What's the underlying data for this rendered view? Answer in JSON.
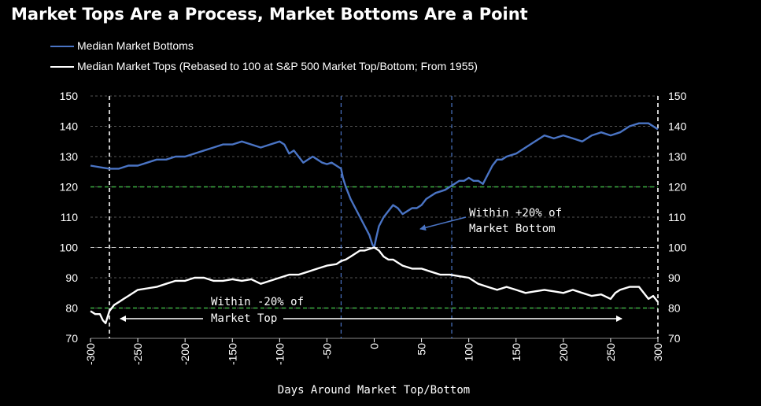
{
  "title": "Market Tops Are a Process, Market Bottoms Are a Point",
  "colors": {
    "bottoms": "#4a74c4",
    "tops": "#ffffff",
    "green_ref": "#3cb043",
    "blue_ref": "#4a74c4",
    "background": "#000000"
  },
  "chart_data": {
    "type": "line",
    "title": "Market Tops Are a Process, Market Bottoms Are a Point",
    "xlabel": "Days Around Market Top/Bottom",
    "ylabel": "",
    "xlim": [
      -300,
      300
    ],
    "ylim": [
      70,
      150
    ],
    "x_ticks": [
      "-300",
      "-250",
      "-200",
      "-150",
      "-100",
      "-50",
      "0",
      "50",
      "100",
      "150",
      "200",
      "250",
      "300"
    ],
    "y_ticks": [
      "70",
      "80",
      "90",
      "100",
      "110",
      "120",
      "130",
      "140",
      "150"
    ],
    "grid": "horizontal dashed",
    "legend": "top-left",
    "series": [
      {
        "name": "Median Market Bottoms",
        "color": "#4a74c4",
        "x": [
          -300,
          -290,
          -280,
          -270,
          -260,
          -250,
          -240,
          -230,
          -220,
          -210,
          -200,
          -190,
          -180,
          -170,
          -160,
          -150,
          -140,
          -130,
          -120,
          -110,
          -100,
          -95,
          -90,
          -85,
          -80,
          -75,
          -70,
          -65,
          -60,
          -55,
          -50,
          -45,
          -40,
          -35,
          -33,
          -30,
          -25,
          -20,
          -15,
          -10,
          -5,
          -2,
          0,
          2,
          5,
          10,
          15,
          20,
          25,
          30,
          35,
          40,
          45,
          50,
          55,
          60,
          65,
          70,
          75,
          80,
          85,
          90,
          95,
          100,
          105,
          110,
          115,
          120,
          125,
          130,
          135,
          140,
          150,
          160,
          170,
          180,
          190,
          200,
          210,
          220,
          230,
          240,
          250,
          260,
          270,
          280,
          290,
          300
        ],
        "y": [
          127,
          126.5,
          126,
          126,
          127,
          127,
          128,
          129,
          129,
          130,
          130,
          131,
          132,
          133,
          134,
          134,
          135,
          134,
          133,
          134,
          135,
          134,
          131,
          132,
          130,
          128,
          129,
          130,
          129,
          128,
          127.5,
          128,
          127,
          126,
          123,
          120,
          116,
          113,
          110,
          107,
          104,
          101,
          100,
          103,
          107,
          110,
          112,
          114,
          113,
          111,
          112,
          113,
          113,
          114,
          116,
          117,
          118,
          118.5,
          119,
          120,
          121,
          122,
          122,
          123,
          122,
          122,
          121,
          124,
          127,
          129,
          129,
          130,
          131,
          133,
          135,
          137,
          136,
          137,
          136,
          135,
          137,
          138,
          137,
          138,
          140,
          141,
          141,
          139
        ]
      },
      {
        "name": "Median Market Tops (Rebased to 100 at S&P 500 Market Top/Bottom; From 1955)",
        "color": "#ffffff",
        "x": [
          -300,
          -295,
          -290,
          -287,
          -284,
          -280,
          -275,
          -270,
          -265,
          -260,
          -250,
          -240,
          -230,
          -220,
          -210,
          -200,
          -190,
          -180,
          -170,
          -160,
          -150,
          -140,
          -130,
          -120,
          -110,
          -100,
          -90,
          -80,
          -70,
          -60,
          -50,
          -40,
          -35,
          -30,
          -25,
          -20,
          -15,
          -10,
          -5,
          0,
          5,
          10,
          15,
          20,
          25,
          30,
          40,
          50,
          60,
          70,
          80,
          90,
          100,
          110,
          120,
          130,
          140,
          150,
          160,
          170,
          180,
          190,
          200,
          210,
          220,
          230,
          240,
          250,
          255,
          260,
          270,
          280,
          285,
          290,
          295,
          300
        ],
        "y": [
          79,
          78,
          78,
          76,
          75,
          79,
          81,
          82,
          83,
          84,
          86,
          86.5,
          87,
          88,
          89,
          89,
          90,
          90,
          89,
          89,
          89.5,
          89,
          89.5,
          88,
          89,
          90,
          91,
          91,
          92,
          93,
          94,
          94.5,
          95.5,
          96,
          97,
          98,
          99,
          99,
          99.5,
          100,
          99,
          97,
          96,
          96,
          95,
          94,
          93,
          93,
          92,
          91,
          91,
          90.5,
          90,
          88,
          87,
          86,
          87,
          86,
          85,
          85.5,
          86,
          85.5,
          85,
          86,
          85,
          84,
          84.5,
          83,
          85,
          86,
          87,
          87,
          85,
          83,
          84,
          82
        ]
      }
    ],
    "reference_lines": [
      {
        "orientation": "horizontal",
        "value": 120,
        "color": "green",
        "style": "dashed"
      },
      {
        "orientation": "horizontal",
        "value": 80,
        "color": "green",
        "style": "dashed"
      },
      {
        "orientation": "horizontal",
        "value": 100,
        "color": "white",
        "style": "dashed"
      },
      {
        "orientation": "vertical",
        "value": -280,
        "color": "white",
        "style": "dashed"
      },
      {
        "orientation": "vertical",
        "value": 300,
        "color": "white",
        "style": "dashed"
      },
      {
        "orientation": "vertical",
        "value": -35,
        "color": "blue",
        "style": "dashed"
      },
      {
        "orientation": "vertical",
        "value": 82,
        "color": "blue",
        "style": "dashed"
      }
    ],
    "annotations": [
      {
        "line1": "Within +20% of",
        "line2": "Market Bottom",
        "x": 100,
        "y": 110
      },
      {
        "line1": "Within -20% of",
        "line2": "Market Top",
        "x": -170,
        "y": 80
      }
    ]
  }
}
